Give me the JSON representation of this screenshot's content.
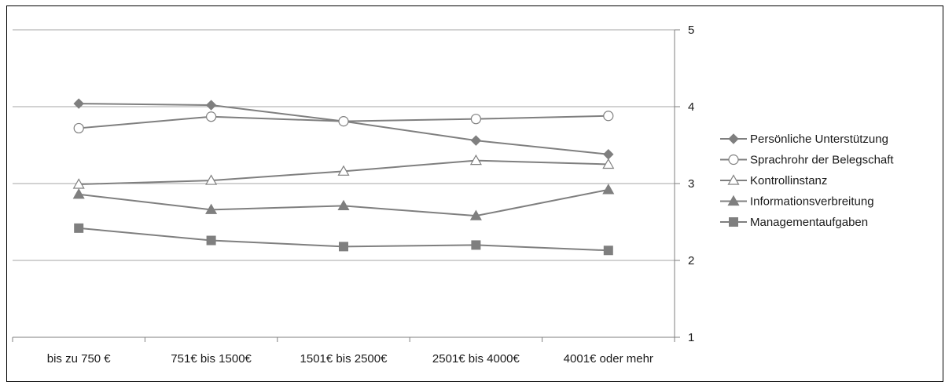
{
  "chart_data": {
    "type": "line",
    "categories": [
      "bis zu 750 €",
      "751€ bis 1500€",
      "1501€ bis 2500€",
      "2501€ bis 4000€",
      "4001€ oder mehr"
    ],
    "ylim": [
      1,
      5
    ],
    "yticks": [
      "1",
      "2",
      "3",
      "4",
      "5"
    ],
    "y_axis_side": "right",
    "grid": true,
    "legend_position": "right",
    "series": [
      {
        "name": "Persönliche Unterstützung",
        "marker": "diamond-filled",
        "values": [
          4.04,
          4.02,
          3.81,
          3.56,
          3.38
        ]
      },
      {
        "name": "Sprachrohr der Belegschaft",
        "marker": "circle-open",
        "values": [
          3.72,
          3.87,
          3.81,
          3.84,
          3.88
        ]
      },
      {
        "name": "Kontrollinstanz",
        "marker": "triangle-open",
        "values": [
          2.99,
          3.04,
          3.16,
          3.3,
          3.25
        ]
      },
      {
        "name": "Informationsverbreitung",
        "marker": "triangle-filled",
        "values": [
          2.86,
          2.66,
          2.71,
          2.58,
          2.92
        ]
      },
      {
        "name": "Managementaufgaben",
        "marker": "square-filled",
        "values": [
          2.42,
          2.26,
          2.18,
          2.2,
          2.13
        ]
      }
    ],
    "colors": {
      "line": "#7f7f7f",
      "marker": "#7f7f7f",
      "grid": "#a6a6a6",
      "axis": "#7f7f7f"
    }
  }
}
